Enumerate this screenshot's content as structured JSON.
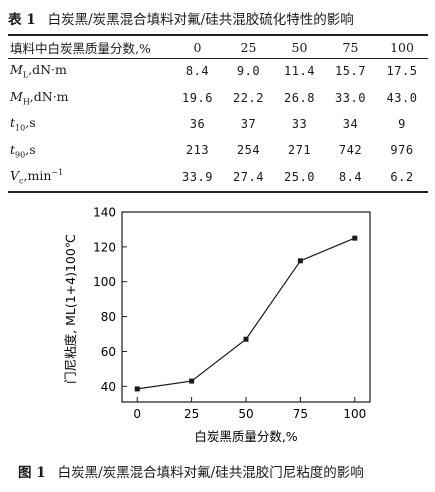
{
  "table": {
    "caption_number": "表 1",
    "caption_text": "白炭黑/炭黑混合填料对氟/硅共混胶硫化特性的影响",
    "header_label": "填料中白炭黑质量分数,%",
    "columns": [
      "0",
      "25",
      "50",
      "75",
      "100"
    ],
    "rows": [
      {
        "sym": "M",
        "sub": "L",
        "sup": "",
        "unit": ",dN·m",
        "values": [
          "8.4",
          "9.0",
          "11.4",
          "15.7",
          "17.5"
        ]
      },
      {
        "sym": "M",
        "sub": "H",
        "sup": "",
        "unit": ",dN·m",
        "values": [
          "19.6",
          "22.2",
          "26.8",
          "33.0",
          "43.0"
        ]
      },
      {
        "sym": "t",
        "sub": "10",
        "sup": "",
        "unit": ",s",
        "values": [
          "36",
          "37",
          "33",
          "34",
          "9"
        ]
      },
      {
        "sym": "t",
        "sub": "90",
        "sup": "",
        "unit": ",s",
        "values": [
          "213",
          "254",
          "271",
          "742",
          "976"
        ]
      },
      {
        "sym": "V",
        "sub": "c",
        "sup": "",
        "unit": ",min",
        "unit_sup": "−1",
        "values": [
          "33.9",
          "27.4",
          "25.0",
          "8.4",
          "6.2"
        ]
      }
    ]
  },
  "figure": {
    "caption_number": "图 1",
    "caption_text": "白炭黑/炭黑混合填料对氟/硅共混胶门尼粘度的影响"
  },
  "chart_data": {
    "type": "line",
    "x": [
      0,
      25,
      50,
      75,
      100
    ],
    "series": [
      {
        "values": [
          38.5,
          43,
          67,
          112,
          125
        ]
      }
    ],
    "xticks": [
      "0",
      "25",
      "50",
      "75",
      "100"
    ],
    "yticks": [
      "40",
      "60",
      "80",
      "100",
      "120",
      "140"
    ],
    "xlabel": "白炭黑质量分数,%",
    "ylabel": "门尼粘度, ML(1+4)100℃",
    "xlim": [
      -7,
      107
    ],
    "ylim": [
      31,
      140
    ],
    "marker": "square",
    "grid": false,
    "line_color": "#1a1a1a"
  }
}
